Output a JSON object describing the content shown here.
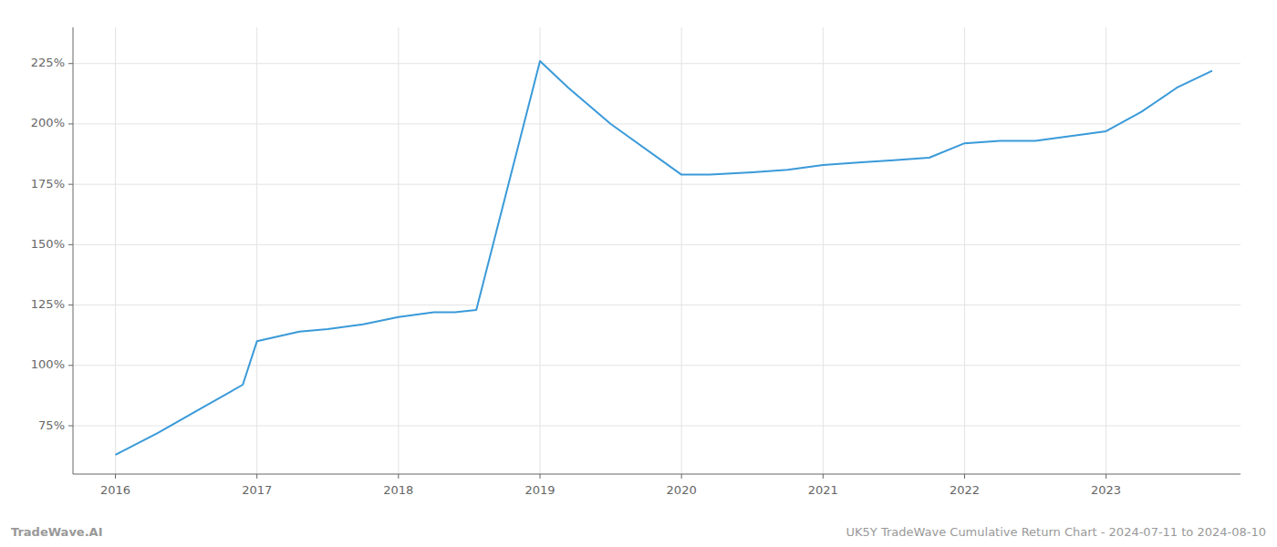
{
  "chart_data": {
    "type": "line",
    "x": [
      2016.0,
      2016.3,
      2016.6,
      2016.9,
      2017.0,
      2017.15,
      2017.3,
      2017.5,
      2017.75,
      2018.0,
      2018.25,
      2018.4,
      2018.55,
      2019.0,
      2019.2,
      2019.5,
      2020.0,
      2020.2,
      2020.5,
      2020.75,
      2021.0,
      2021.25,
      2021.5,
      2021.75,
      2022.0,
      2022.25,
      2022.5,
      2022.75,
      2023.0,
      2023.25,
      2023.5,
      2023.75
    ],
    "values": [
      63,
      72,
      82,
      92,
      110,
      112,
      114,
      115,
      117,
      120,
      122,
      122,
      123,
      226,
      215,
      200,
      179,
      179,
      180,
      181,
      183,
      184,
      185,
      186,
      192,
      193,
      193,
      195,
      197,
      205,
      215,
      222
    ],
    "color": "#3a9ad9",
    "xlim": [
      2015.7,
      2023.95
    ],
    "xticks": [
      2016,
      2017,
      2018,
      2019,
      2020,
      2021,
      2022,
      2023
    ],
    "ylim": [
      55,
      240
    ],
    "yticks": [
      {
        "value": 75,
        "label": "75%"
      },
      {
        "value": 100,
        "label": "100%"
      },
      {
        "value": 125,
        "label": "125%"
      },
      {
        "value": 150,
        "label": "150%"
      },
      {
        "value": 175,
        "label": "175%"
      },
      {
        "value": 200,
        "label": "200%"
      },
      {
        "value": 225,
        "label": "225%"
      }
    ],
    "grid": true,
    "annotations": [
      "TradeWave.AI",
      "UK5Y TradeWave Cumulative Return Chart - 2024-07-11 to 2024-08-10"
    ]
  }
}
